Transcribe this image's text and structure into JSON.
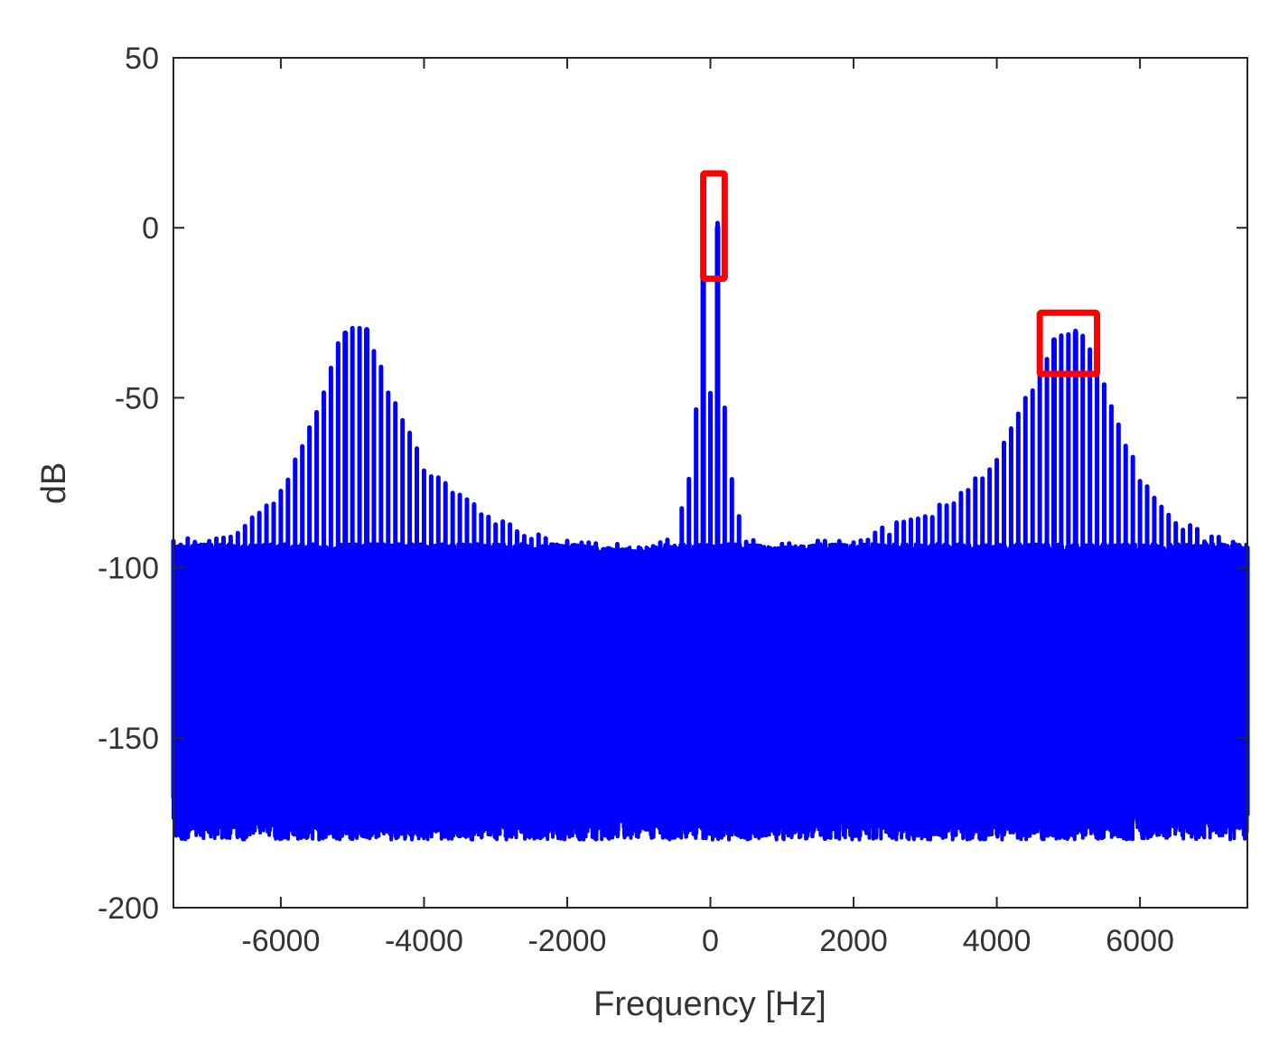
{
  "chart_data": {
    "type": "line",
    "xlabel": "Frequency [Hz]",
    "ylabel": "dB",
    "xlim": [
      -7500,
      7500
    ],
    "ylim": [
      -200,
      50
    ],
    "xticks": [
      -6000,
      -4000,
      -2000,
      0,
      2000,
      4000,
      6000
    ],
    "xtick_labels": [
      "-6000",
      "-4000",
      "-2000",
      "0",
      "2000",
      "4000",
      "6000"
    ],
    "yticks": [
      50,
      0,
      -50,
      -100,
      -150,
      -200
    ],
    "ytick_labels": [
      "50",
      "0",
      "-50",
      "-100",
      "-150",
      "-200"
    ],
    "grid": false,
    "series": [
      {
        "color": "#0000ff",
        "harmonic_spacing_hz": 100,
        "noise_floor_db": [
          -175,
          -95
        ],
        "peaks": [
          {
            "x": -5100,
            "y": -31
          },
          {
            "x": -4800,
            "y": -30
          },
          {
            "x": -100,
            "y": 0
          },
          {
            "x": 100,
            "y": 0
          },
          {
            "x": 4800,
            "y": -33
          },
          {
            "x": 5100,
            "y": -31
          }
        ],
        "envelope": [
          {
            "x": -7500,
            "y": -92
          },
          {
            "x": -7000,
            "y": -93
          },
          {
            "x": -6500,
            "y": -88
          },
          {
            "x": -6000,
            "y": -78
          },
          {
            "x": -5500,
            "y": -55
          },
          {
            "x": -5200,
            "y": -34
          },
          {
            "x": -5000,
            "y": -31
          },
          {
            "x": -4800,
            "y": -30
          },
          {
            "x": -4500,
            "y": -48
          },
          {
            "x": -4000,
            "y": -70
          },
          {
            "x": -3500,
            "y": -80
          },
          {
            "x": -3000,
            "y": -87
          },
          {
            "x": -2500,
            "y": -91
          },
          {
            "x": -2000,
            "y": -93
          },
          {
            "x": -1500,
            "y": -94
          },
          {
            "x": -1000,
            "y": -94
          },
          {
            "x": -500,
            "y": -93
          },
          {
            "x": -300,
            "y": -75
          },
          {
            "x": -200,
            "y": -53
          },
          {
            "x": -100,
            "y": 0
          },
          {
            "x": 0,
            "y": -50
          },
          {
            "x": 100,
            "y": 0
          },
          {
            "x": 200,
            "y": -53
          },
          {
            "x": 300,
            "y": -75
          },
          {
            "x": 500,
            "y": -93
          },
          {
            "x": 1000,
            "y": -94
          },
          {
            "x": 1500,
            "y": -93
          },
          {
            "x": 2000,
            "y": -92
          },
          {
            "x": 2500,
            "y": -89
          },
          {
            "x": 3000,
            "y": -85
          },
          {
            "x": 3500,
            "y": -79
          },
          {
            "x": 4000,
            "y": -68
          },
          {
            "x": 4500,
            "y": -47
          },
          {
            "x": 4800,
            "y": -33
          },
          {
            "x": 5000,
            "y": -32
          },
          {
            "x": 5200,
            "y": -31
          },
          {
            "x": 5500,
            "y": -46
          },
          {
            "x": 6000,
            "y": -74
          },
          {
            "x": 6500,
            "y": -87
          },
          {
            "x": 7000,
            "y": -92
          },
          {
            "x": 7500,
            "y": -93
          }
        ]
      }
    ],
    "annotations": [
      {
        "type": "rectangle",
        "color": "#ff0000",
        "x": [
          -100,
          200
        ],
        "y": [
          -15,
          16
        ]
      },
      {
        "type": "rectangle",
        "color": "#ff0000",
        "x": [
          4600,
          5400
        ],
        "y": [
          -43,
          -25
        ]
      }
    ]
  }
}
